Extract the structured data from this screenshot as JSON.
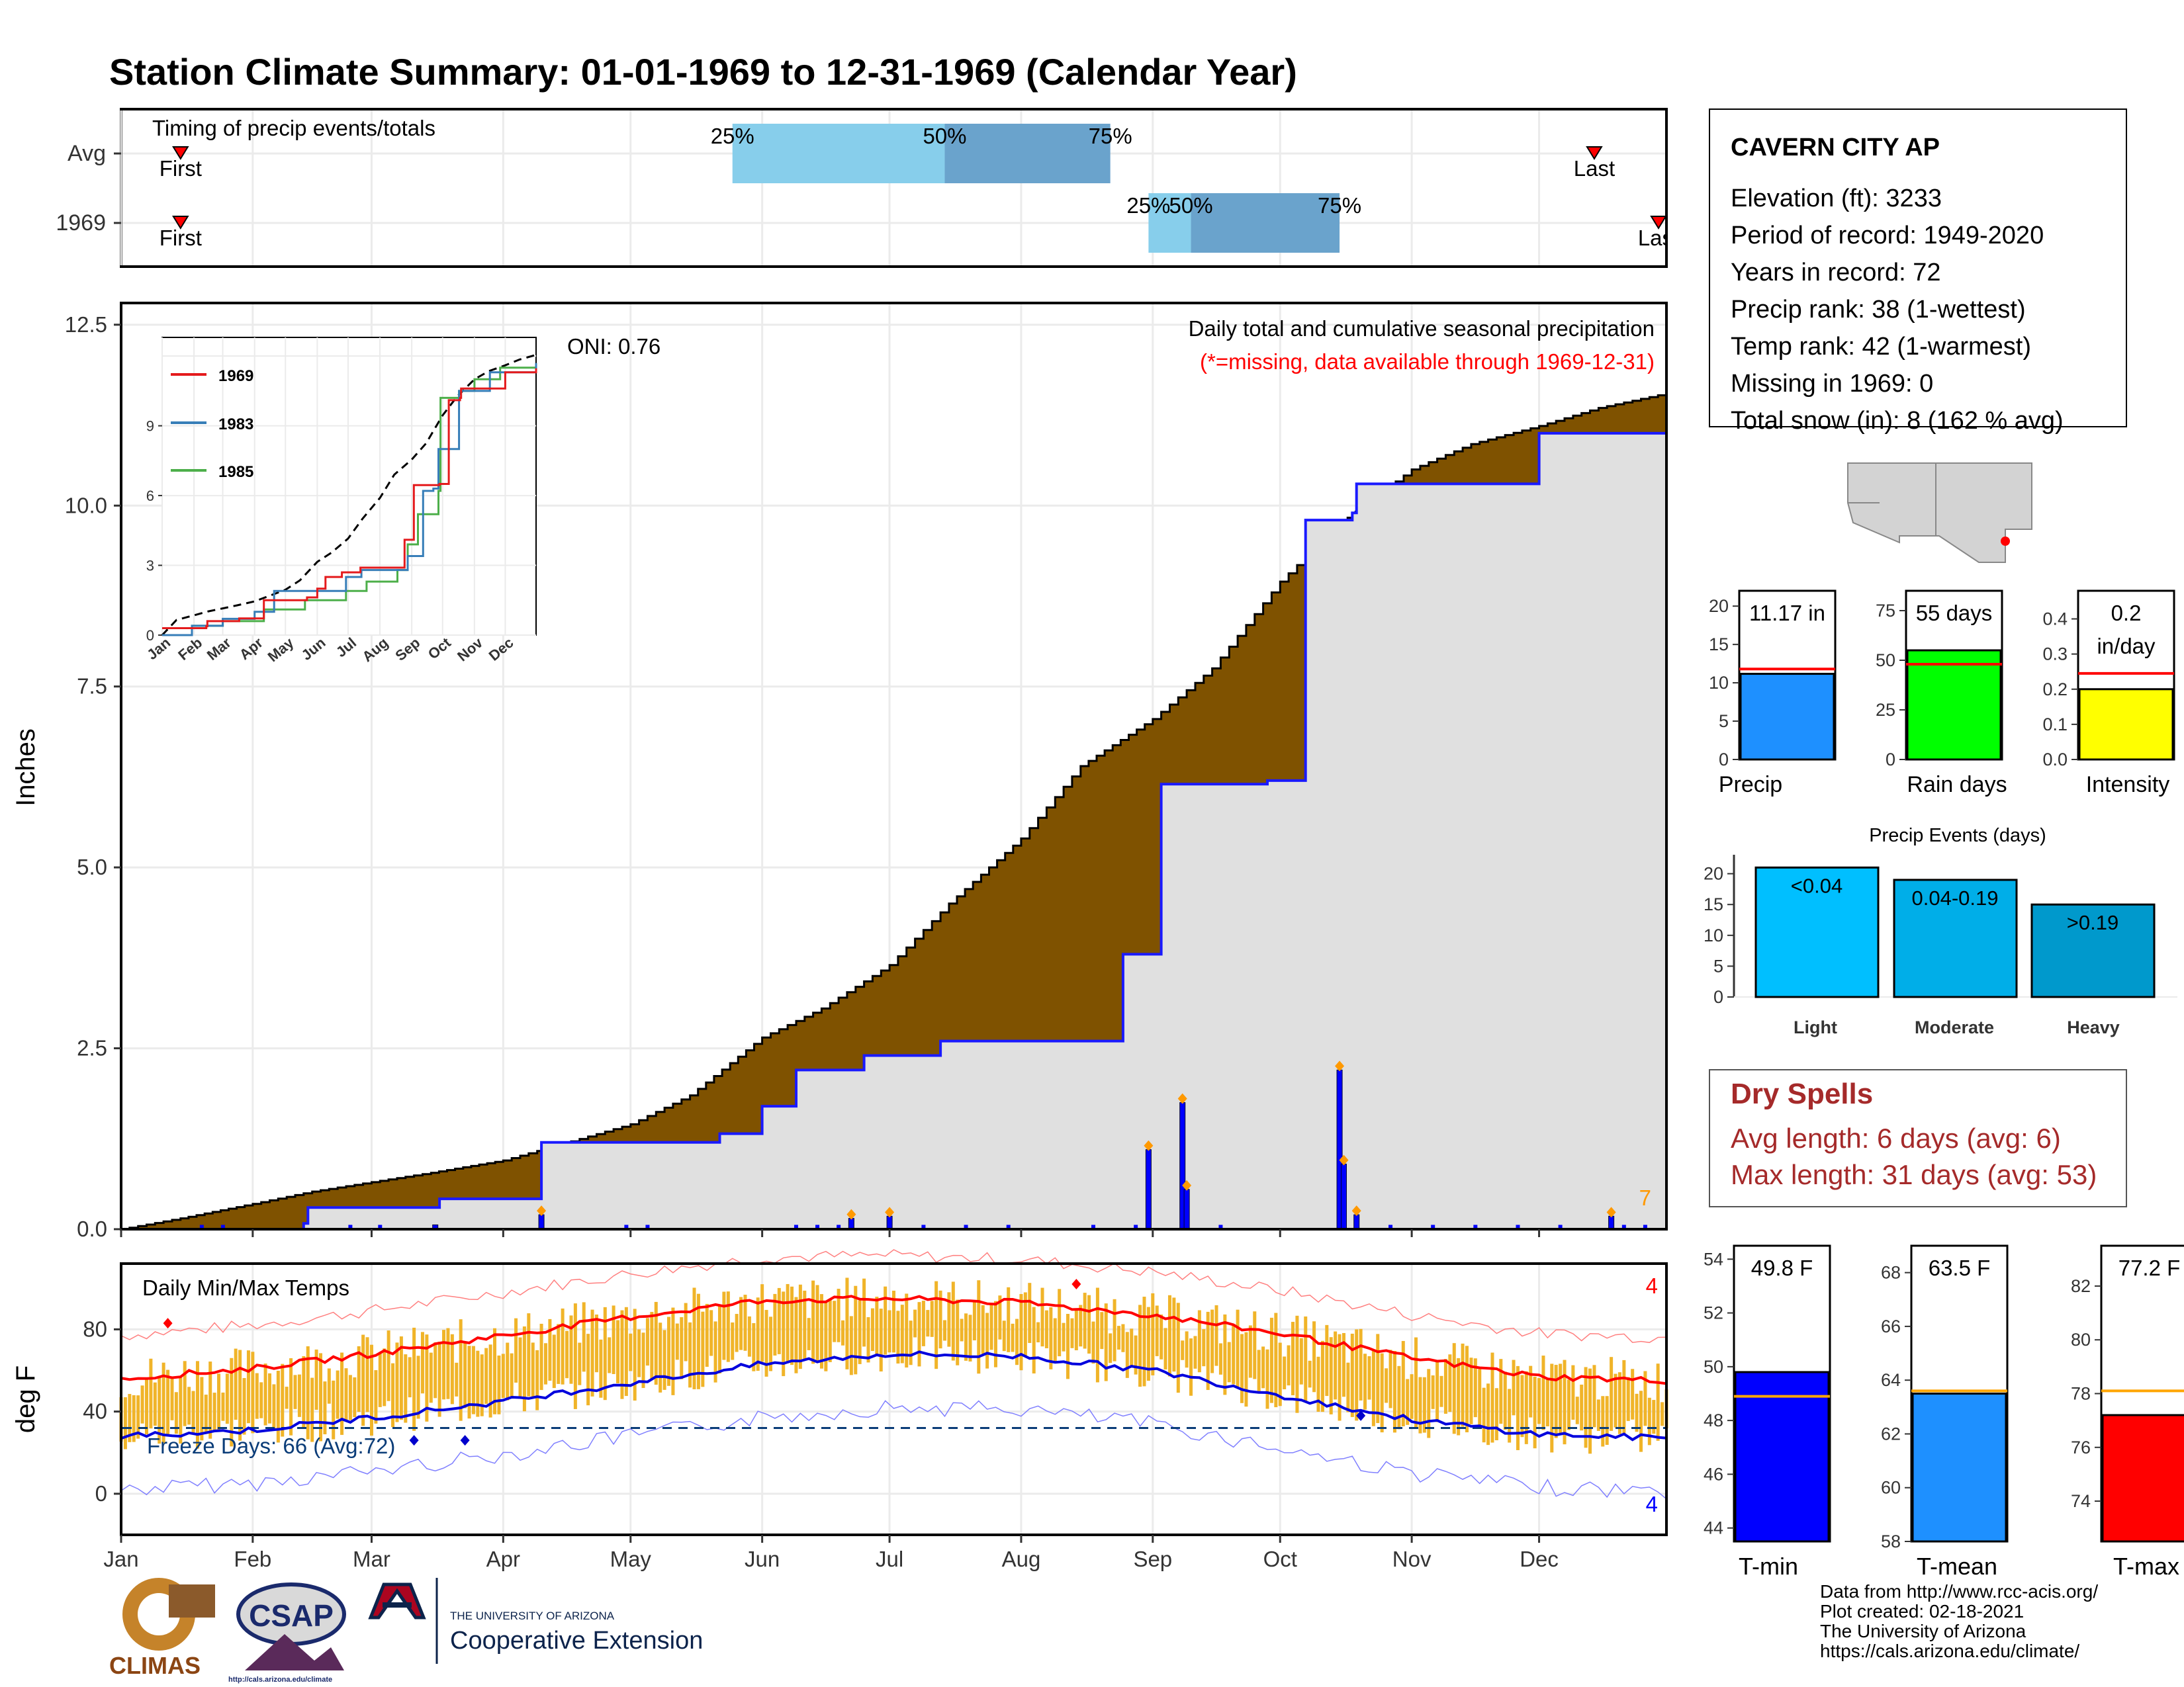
{
  "title": "Station Climate Summary: 01-01-1969 to 12-31-1969 (Calendar Year)",
  "colors": {
    "title": "#000080",
    "cum_avg": "#7f5200",
    "cum_1969": "#1a1aff",
    "cum_fill": "#e0e0e0",
    "q_light": "#87ceeb",
    "q_dark": "#6aa3cc",
    "tmax_line": "#ff0000",
    "tmin_line": "#0000dd",
    "temp_bar": "#f0b429",
    "dry_text": "#a52a2a",
    "missing_note": "#ff0000",
    "count": "#ff9900"
  },
  "timing": {
    "label": "Timing of precip events/totals",
    "rows": [
      {
        "name": "Avg",
        "first": "First",
        "last": "Last",
        "q25": "25%",
        "q50": "50%",
        "q75": "75%"
      },
      {
        "name": "1969",
        "first": "First",
        "last": "Last",
        "q25": "25%",
        "q50": "50%",
        "q75": "75%"
      }
    ]
  },
  "precip_panel": {
    "ylabel": "Inches",
    "title": "Daily total and cumulative seasonal precipitation",
    "missing_note": "(*=missing, data available through 1969-12-31)",
    "oni": "ONI: 0.76",
    "yticks": [
      "0.0",
      "2.5",
      "5.0",
      "7.5",
      "10.0",
      "12.5"
    ],
    "count_label": "7"
  },
  "inset": {
    "yticks": [
      "0",
      "3",
      "6",
      "9"
    ],
    "xticks": [
      "Jan",
      "Feb",
      "Mar",
      "Apr",
      "May",
      "Jun",
      "Jul",
      "Aug",
      "Sep",
      "Oct",
      "Nov",
      "Dec"
    ],
    "legend": [
      "1969",
      "1983",
      "1985"
    ]
  },
  "temp_panel": {
    "ylabel": "deg F",
    "title": "Daily Min/Max Temps",
    "freeze": "Freeze Days: 66 (Avg:72)",
    "yticks": [
      "0",
      "40",
      "80"
    ],
    "count_top": "4",
    "count_bottom": "4"
  },
  "months": [
    "Jan",
    "Feb",
    "Mar",
    "Apr",
    "May",
    "Jun",
    "Jul",
    "Aug",
    "Sep",
    "Oct",
    "Nov",
    "Dec"
  ],
  "station": {
    "name": "CAVERN CITY AP",
    "lines": [
      "Elevation (ft): 3233",
      "Period of record: 1949-2020",
      "Years in record: 72",
      "Precip rank: 38 (1-wettest)",
      "Temp rank: 42 (1-warmest)",
      "Missing in 1969: 0",
      "Total snow (in): 8 (162 % avg)"
    ]
  },
  "mini_bars": [
    {
      "label": "Precip",
      "value_text": "11.17 in",
      "value": 11.17,
      "avg": 11.8,
      "ymax": 22,
      "ticks": [
        "0",
        "5",
        "10",
        "15",
        "20"
      ],
      "tickvals": [
        0,
        5,
        10,
        15,
        20
      ],
      "color": "#1e90ff"
    },
    {
      "label": "Rain days",
      "value_text": "55 days",
      "value": 55,
      "avg": 48,
      "ymax": 85,
      "ticks": [
        "0",
        "25",
        "50",
        "75"
      ],
      "tickvals": [
        0,
        25,
        50,
        75
      ],
      "color": "#00ff00"
    },
    {
      "label": "Intensity",
      "value_text": "0.2",
      "value_text2": "in/day",
      "value": 0.2,
      "avg": 0.245,
      "ymax": 0.48,
      "ticks": [
        "0.0",
        "0.1",
        "0.2",
        "0.3",
        "0.4"
      ],
      "tickvals": [
        0,
        0.1,
        0.2,
        0.3,
        0.4
      ],
      "color": "#ffff00"
    }
  ],
  "events": {
    "title": "Precip Events (days)",
    "ticks": [
      "0",
      "5",
      "10",
      "15",
      "20"
    ],
    "bars": [
      {
        "label": "Light",
        "text": "<0.04",
        "value": 21,
        "color": "#00bfff"
      },
      {
        "label": "Moderate",
        "text": "0.04-0.19",
        "value": 19,
        "color": "#00aee8"
      },
      {
        "label": "Heavy",
        "text": ">0.19",
        "value": 15,
        "color": "#0099cc"
      }
    ]
  },
  "dry_spells": {
    "title": "Dry Spells",
    "avg": "Avg length: 6 days (avg: 6)",
    "max": "Max length: 31 days (avg: 53)"
  },
  "temp_bars": [
    {
      "label": "T-min",
      "value_text": "49.8 F",
      "value": 49.8,
      "avg": 48.9,
      "ymin": 43.5,
      "ymax": 54.5,
      "ticks": [
        "44",
        "46",
        "48",
        "50",
        "52",
        "54"
      ],
      "tickvals": [
        44,
        46,
        48,
        50,
        52,
        54
      ],
      "color": "#0000ff"
    },
    {
      "label": "T-mean",
      "value_text": "63.5 F",
      "value": 63.5,
      "avg": 63.6,
      "ymin": 58,
      "ymax": 69,
      "ticks": [
        "58",
        "60",
        "62",
        "64",
        "66",
        "68"
      ],
      "tickvals": [
        58,
        60,
        62,
        64,
        66,
        68
      ],
      "color": "#1e90ff"
    },
    {
      "label": "T-max",
      "value_text": "77.2 F",
      "value": 77.2,
      "avg": 78.1,
      "ymin": 72.5,
      "ymax": 83.5,
      "ticks": [
        "74",
        "76",
        "78",
        "80",
        "82"
      ],
      "tickvals": [
        74,
        76,
        78,
        80,
        82
      ],
      "color": "#ff0000"
    }
  ],
  "footer": {
    "lines": [
      "Data from http://www.rcc-acis.org/",
      "Plot created: 02-18-2021",
      "The University of Arizona",
      "https://cals.arizona.edu/climate/"
    ],
    "climas": "CLIMAS",
    "csap": "CSAP",
    "csap_url": "http://cals.arizona.edu/climate",
    "ua_small": "THE UNIVERSITY OF ARIZONA",
    "ua_big": "Cooperative Extension"
  },
  "chart_data": [
    {
      "type": "timing",
      "rows": [
        {
          "name": "Avg",
          "first_doy": 15,
          "last_doy": 348,
          "q25_doy": 145,
          "q50_doy": 195,
          "q75_doy": 234
        },
        {
          "name": "1969",
          "first_doy": 15,
          "last_doy": 366,
          "q25_doy": 243,
          "q50_doy": 253,
          "q75_doy": 288
        }
      ]
    },
    {
      "type": "area",
      "title": "Daily total and cumulative seasonal precipitation",
      "ylabel": "Inches",
      "ylim": [
        0,
        12.5
      ],
      "series": [
        {
          "name": "Avg cumulative",
          "x": [
            1,
            15,
            32,
            46,
            60,
            74,
            91,
            105,
            121,
            135,
            152,
            166,
            182,
            196,
            213,
            227,
            244,
            258,
            274,
            288,
            305,
            319,
            335,
            349,
            365
          ],
          "y": [
            0.0,
            0.15,
            0.35,
            0.52,
            0.65,
            0.78,
            0.95,
            1.18,
            1.45,
            1.85,
            2.65,
            3.05,
            3.65,
            4.5,
            5.4,
            6.4,
            7.05,
            7.75,
            8.95,
            9.75,
            10.5,
            10.85,
            11.1,
            11.35,
            11.55
          ]
        },
        {
          "name": "1969 cumulative",
          "x": [
            1,
            11,
            44,
            45,
            75,
            76,
            99,
            100,
            141,
            142,
            152,
            160,
            176,
            194,
            236,
            237,
            237,
            245,
            246,
            270,
            271,
            279,
            280,
            291,
            292,
            305,
            319,
            334,
            335,
            364,
            365
          ],
          "y": [
            0.0,
            0.0,
            0.08,
            0.3,
            0.3,
            0.42,
            0.42,
            1.2,
            1.2,
            1.32,
            1.7,
            2.2,
            2.4,
            2.6,
            2.6,
            3.8,
            3.8,
            3.8,
            6.15,
            6.15,
            6.2,
            6.2,
            9.8,
            9.9,
            10.3,
            10.3,
            10.3,
            10.3,
            11.0,
            11.0,
            11.17
          ]
        }
      ],
      "daily": [
        {
          "doy": 243,
          "value": 1.1
        },
        {
          "doy": 251,
          "value": 1.75
        },
        {
          "doy": 252,
          "value": 0.55
        },
        {
          "doy": 288,
          "value": 2.2
        },
        {
          "doy": 289,
          "value": 0.9
        },
        {
          "doy": 292,
          "value": 0.2
        },
        {
          "doy": 100,
          "value": 0.2
        },
        {
          "doy": 75,
          "value": 0.06
        },
        {
          "doy": 352,
          "value": 0.18
        },
        {
          "doy": 173,
          "value": 0.15
        },
        {
          "doy": 182,
          "value": 0.18
        }
      ]
    },
    {
      "type": "line",
      "title": "Daily Min/Max Temps",
      "ylabel": "deg F",
      "ylim": [
        -20,
        112
      ],
      "series": [
        {
          "name": "Avg max",
          "x": [
            1,
            32,
            60,
            91,
            121,
            152,
            182,
            213,
            244,
            274,
            305,
            335,
            365
          ],
          "y": [
            56,
            61,
            68,
            77,
            86,
            94,
            95,
            93,
            87,
            78,
            66,
            57,
            55
          ]
        },
        {
          "name": "Avg min",
          "x": [
            1,
            32,
            60,
            91,
            121,
            152,
            182,
            213,
            244,
            274,
            305,
            335,
            365
          ],
          "y": [
            28,
            31,
            37,
            45,
            54,
            63,
            68,
            67,
            60,
            48,
            36,
            29,
            27
          ]
        }
      ],
      "freeze_line": 32
    },
    {
      "type": "bar",
      "title": "Precip Events (days)",
      "categories": [
        "Light",
        "Moderate",
        "Heavy"
      ],
      "values": [
        21,
        19,
        15
      ],
      "ylim": [
        0,
        22
      ]
    },
    {
      "type": "bar",
      "categories": [
        "Precip",
        "Rain days",
        "Intensity"
      ],
      "values": [
        11.17,
        55,
        0.2
      ]
    },
    {
      "type": "bar",
      "categories": [
        "T-min",
        "T-mean",
        "T-max"
      ],
      "values": [
        49.8,
        63.5,
        77.2
      ]
    }
  ]
}
